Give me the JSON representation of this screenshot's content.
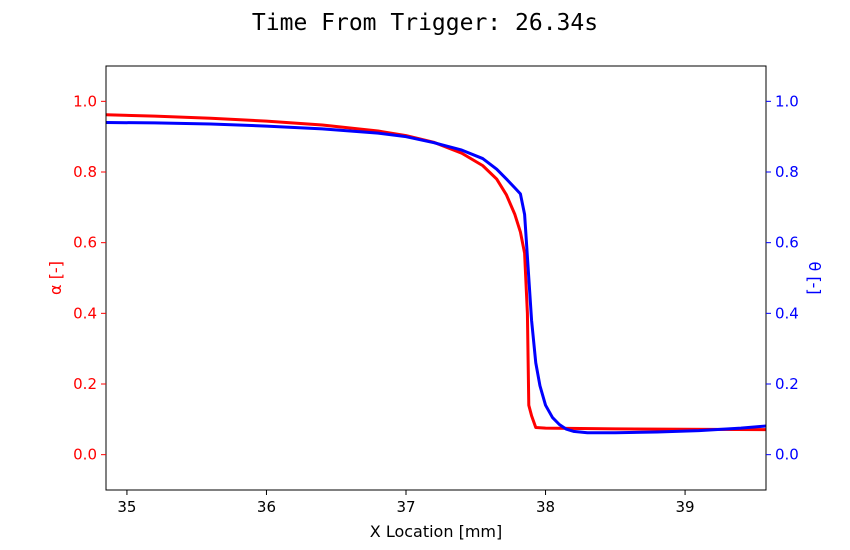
{
  "chart_data": {
    "type": "line",
    "title": "Time From Trigger: 26.34s",
    "xlabel": "X Location [mm]",
    "ylabel_left": "α [-]",
    "ylabel_right": "θ [-]",
    "xlim": [
      34.85,
      39.58
    ],
    "ylim": [
      -0.1,
      1.1
    ],
    "x_ticks": [
      "35",
      "36",
      "37",
      "38",
      "39"
    ],
    "y_ticks": [
      "0.0",
      "0.2",
      "0.4",
      "0.6",
      "0.8",
      "1.0"
    ],
    "grid": false,
    "colors": {
      "left_axis": "#ff0000",
      "right_axis": "#0000ff"
    },
    "series": [
      {
        "axis": "left",
        "color": "#ff0000",
        "x": [
          34.85,
          35.2,
          35.6,
          36.0,
          36.4,
          36.8,
          37.0,
          37.2,
          37.4,
          37.55,
          37.65,
          37.72,
          37.78,
          37.82,
          37.85,
          37.87,
          37.88,
          37.9,
          37.93,
          38.0,
          38.5,
          39.0,
          39.58
        ],
        "y": [
          0.962,
          0.958,
          0.952,
          0.944,
          0.933,
          0.916,
          0.903,
          0.884,
          0.853,
          0.818,
          0.78,
          0.735,
          0.68,
          0.63,
          0.57,
          0.4,
          0.14,
          0.11,
          0.077,
          0.075,
          0.073,
          0.072,
          0.071
        ]
      },
      {
        "axis": "right",
        "color": "#0000ff",
        "x": [
          34.85,
          35.2,
          35.6,
          36.0,
          36.4,
          36.8,
          37.0,
          37.2,
          37.4,
          37.55,
          37.65,
          37.72,
          37.78,
          37.82,
          37.85,
          37.87,
          37.9,
          37.93,
          37.96,
          38.0,
          38.05,
          38.1,
          38.15,
          38.2,
          38.3,
          38.5,
          38.8,
          39.1,
          39.4,
          39.58
        ],
        "y": [
          0.94,
          0.939,
          0.936,
          0.93,
          0.922,
          0.91,
          0.9,
          0.883,
          0.862,
          0.838,
          0.808,
          0.78,
          0.755,
          0.738,
          0.68,
          0.56,
          0.38,
          0.26,
          0.195,
          0.14,
          0.105,
          0.085,
          0.072,
          0.066,
          0.062,
          0.062,
          0.064,
          0.068,
          0.075,
          0.081
        ]
      }
    ]
  }
}
